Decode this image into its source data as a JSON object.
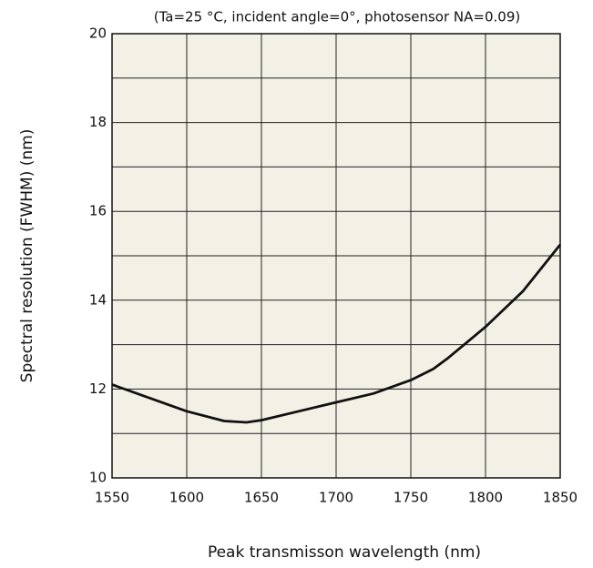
{
  "chart_data": {
    "type": "line",
    "title": "(Ta=25 °C, incident angle=0°, photosensor NA=0.09)",
    "x_label": "Peak transmisson wavelength (nm)",
    "y_label": "Spectral resolution (FWHM) (nm)",
    "x": [
      1550,
      1575,
      1600,
      1625,
      1640,
      1650,
      1675,
      1700,
      1725,
      1750,
      1765,
      1775,
      1800,
      1825,
      1850
    ],
    "values": [
      12.1,
      11.8,
      11.5,
      11.28,
      11.25,
      11.3,
      11.5,
      11.7,
      11.9,
      12.2,
      12.45,
      12.7,
      13.4,
      14.2,
      15.25
    ],
    "color": "#111111",
    "xlim": [
      1550,
      1850
    ],
    "xticks": [
      1550,
      1600,
      1650,
      1700,
      1750,
      1800,
      1850
    ],
    "ylim": [
      10,
      20
    ],
    "yticks": [
      10,
      12,
      14,
      16,
      18,
      20
    ],
    "yminor_ticks": [
      11,
      13,
      15,
      17,
      19
    ],
    "grid": true
  }
}
